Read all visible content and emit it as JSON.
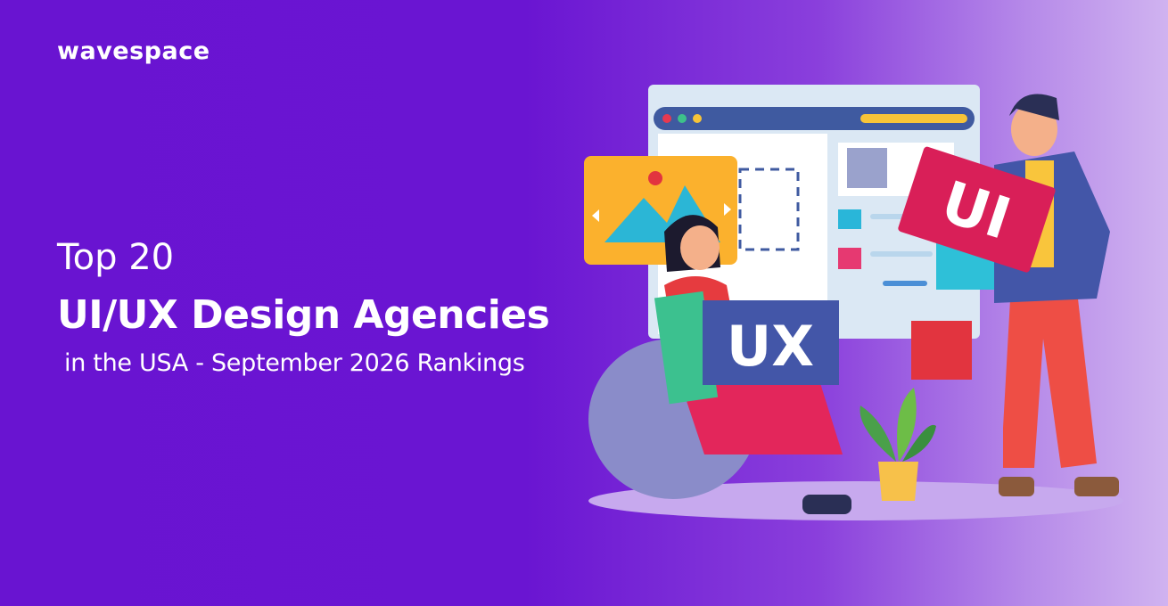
{
  "logo": "wavespace",
  "headline": {
    "line1": "Top 20",
    "line2": "UI/UX Design Agencies",
    "line3": "in the USA - September 2026 Rankings"
  },
  "illustration": {
    "ux_card": "UX",
    "ui_card": "UI"
  }
}
